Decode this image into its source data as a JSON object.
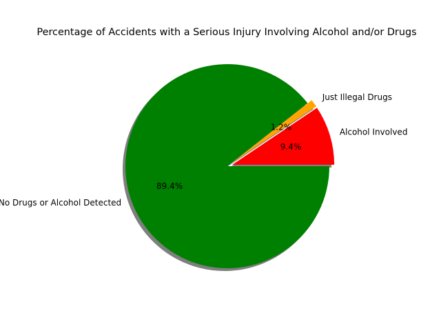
{
  "chart_data": {
    "type": "pie",
    "title": "Percentage of Accidents with a Serious Injury Involving Alcohol and/or Drugs",
    "start_angle_deg": 0,
    "direction": "counterclockwise",
    "shadow": true,
    "slices": [
      {
        "label": "Alcohol Involved",
        "value": 9.4,
        "pct_label": "9.4%",
        "color": "#ff0000",
        "exploded": true
      },
      {
        "label": "Just Illegal Drugs",
        "value": 1.2,
        "pct_label": "1.2%",
        "color": "#ffa500",
        "exploded": true
      },
      {
        "label": "No Drugs or Alcohol Detected",
        "value": 89.4,
        "pct_label": "89.4%",
        "color": "#008000",
        "exploded": false
      }
    ]
  }
}
